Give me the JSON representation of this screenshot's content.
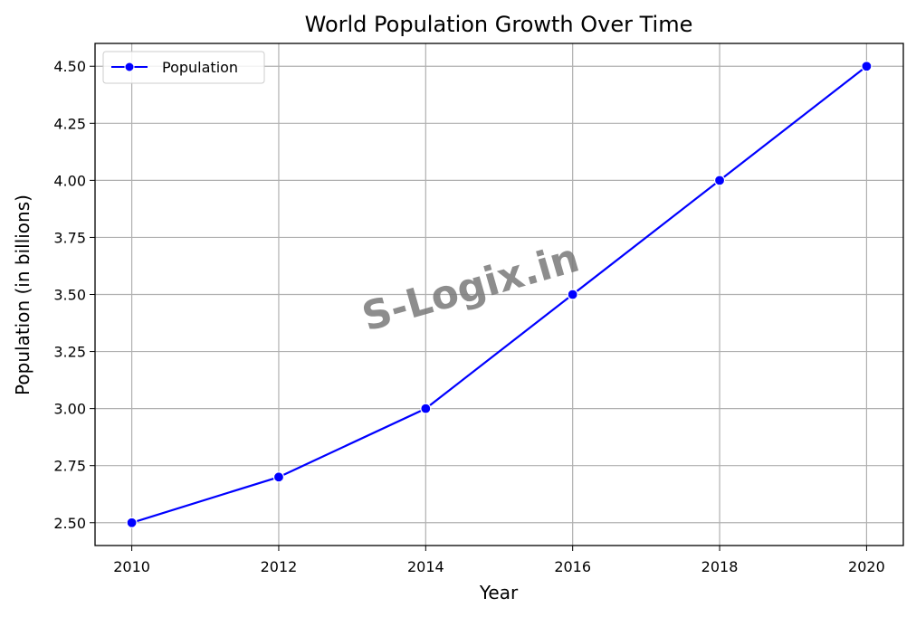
{
  "chart_data": {
    "type": "line",
    "title": "World Population Growth Over Time",
    "xlabel": "Year",
    "ylabel": "Population (in billions)",
    "x": [
      2010,
      2012,
      2014,
      2016,
      2018,
      2020
    ],
    "series": [
      {
        "name": "Population",
        "values": [
          2.5,
          2.7,
          3.0,
          3.5,
          4.0,
          4.5
        ],
        "color": "#0000ff"
      }
    ],
    "xlim": [
      2009.5,
      2020.5
    ],
    "ylim": [
      2.4,
      4.6
    ],
    "xticks": [
      "2010",
      "2012",
      "2014",
      "2016",
      "2018",
      "2020"
    ],
    "yticks": [
      "2.50",
      "2.75",
      "3.00",
      "3.25",
      "3.50",
      "3.75",
      "4.00",
      "4.25",
      "4.50"
    ],
    "grid": true,
    "legend_position": "top-left"
  },
  "watermark": "S-Logix.in"
}
